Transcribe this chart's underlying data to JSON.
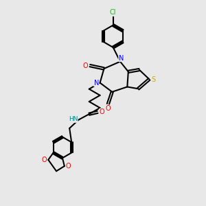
{
  "bg_color": "#e8e8e8",
  "bond_color": "#000000",
  "bond_width": 1.5,
  "atom_colors": {
    "N": "#0000ff",
    "O": "#ff0000",
    "S": "#ccaa00",
    "Cl": "#00cc00",
    "HN": "#008888"
  },
  "figsize": [
    3.0,
    3.0
  ],
  "dpi": 100
}
